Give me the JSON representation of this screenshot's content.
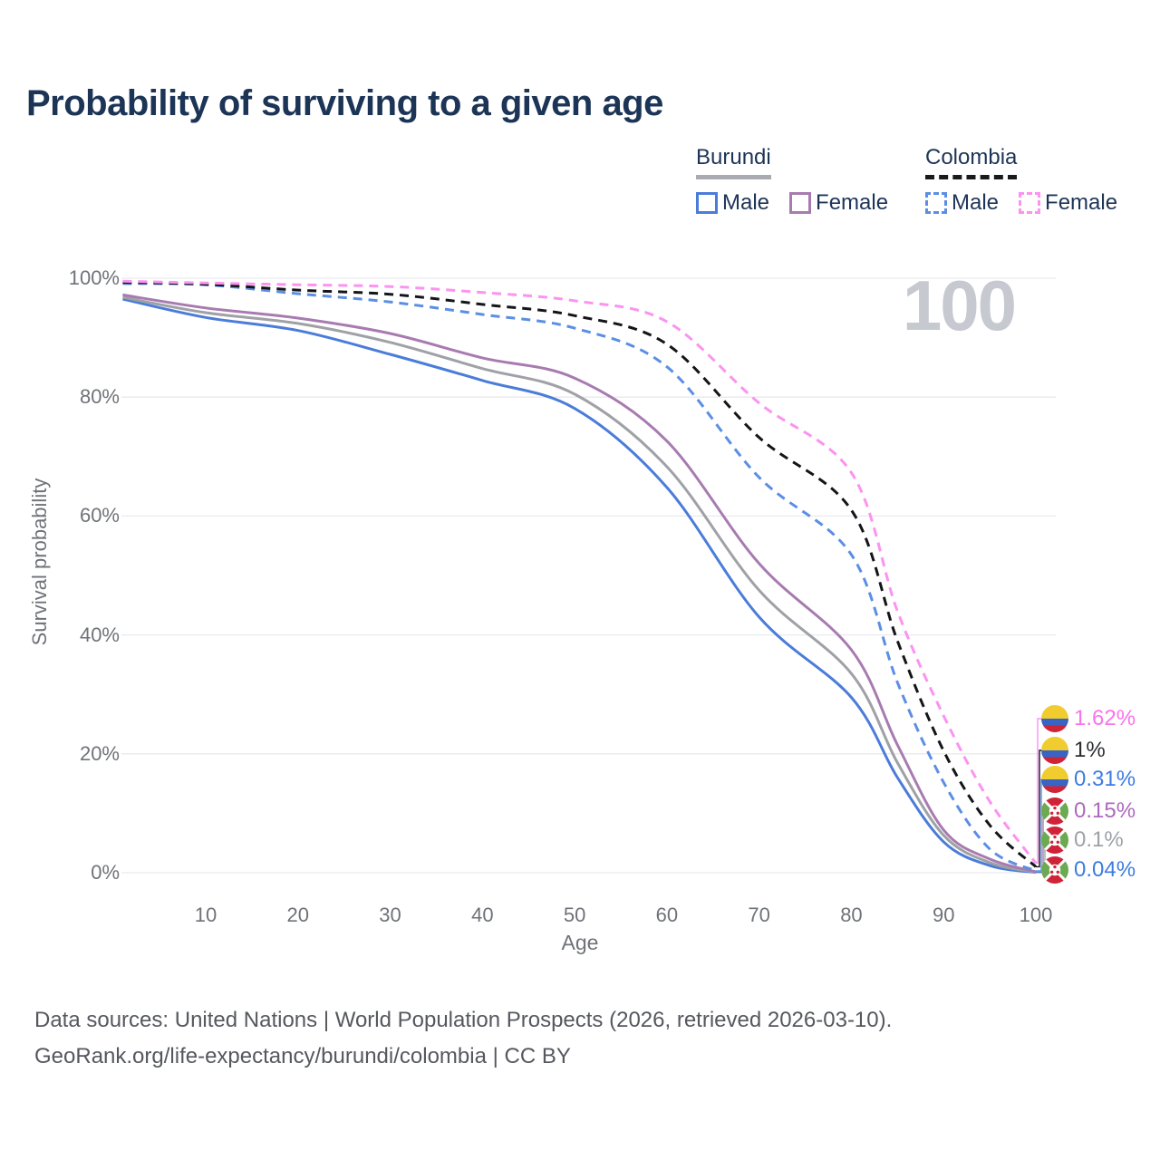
{
  "page": {
    "title": "Probability of surviving to a given age",
    "watermark_age": "100",
    "footer_line1": "Data sources: United Nations | World Population Prospects (2026, retrieved 2026-03-10).",
    "footer_line2": "GeoRank.org/life-expectancy/burundi/colombia | CC BY"
  },
  "legend": {
    "groups": [
      {
        "label": "Burundi",
        "underline_style": "solid",
        "underline_color": "#a9abb0",
        "items": [
          {
            "label": "Male",
            "color": "#4a7cd9",
            "dashed": false
          },
          {
            "label": "Female",
            "color": "#a87bb0",
            "dashed": false
          }
        ]
      },
      {
        "label": "Colombia",
        "underline_style": "dashed",
        "underline_color": "#1a1a1a",
        "items": [
          {
            "label": "Male",
            "color": "#5b8ee4",
            "dashed": true
          },
          {
            "label": "Female",
            "color": "#fb93f0",
            "dashed": true
          }
        ]
      }
    ]
  },
  "chart_data": {
    "type": "line",
    "title": "Probability of surviving to a given age",
    "xlabel": "Age",
    "ylabel": "Survival probability",
    "xlim": [
      1,
      100
    ],
    "ylim": [
      0,
      100
    ],
    "x_ticks": [
      10,
      20,
      30,
      40,
      50,
      60,
      70,
      80,
      90,
      100
    ],
    "y_ticks": [
      0,
      20,
      40,
      60,
      80,
      100
    ],
    "y_tick_suffix": "%",
    "grid": "horizontal",
    "grid_color": "#e9eaee",
    "x": [
      1,
      10,
      20,
      30,
      40,
      50,
      60,
      70,
      80,
      85,
      90,
      95,
      100
    ],
    "series": [
      {
        "name": "Burundi Male",
        "color": "#4a7cd9",
        "dash": false,
        "values": [
          96.5,
          93.4,
          91.2,
          87.2,
          82.8,
          78.1,
          64.8,
          43.0,
          29.5,
          16.0,
          5.2,
          1.2,
          0.04
        ]
      },
      {
        "name": "Burundi Total",
        "color": "#9fa1a6",
        "dash": false,
        "values": [
          96.8,
          94.2,
          92.4,
          89.2,
          84.8,
          80.5,
          68.3,
          47.5,
          33.5,
          18.5,
          6.3,
          1.7,
          0.1
        ]
      },
      {
        "name": "Burundi Female",
        "color": "#a87bb0",
        "dash": false,
        "values": [
          97.2,
          95.0,
          93.3,
          90.7,
          86.6,
          83.2,
          72.6,
          52.0,
          37.5,
          21.5,
          7.2,
          2.3,
          0.15
        ]
      },
      {
        "name": "Colombia Male",
        "color": "#5b8ee4",
        "dash": true,
        "values": [
          99.1,
          98.9,
          97.4,
          96.0,
          93.9,
          91.6,
          85.1,
          66.5,
          53.5,
          32.0,
          15.2,
          4.0,
          0.31
        ]
      },
      {
        "name": "Colombia Total",
        "color": "#141518",
        "dash": true,
        "values": [
          99.3,
          99.0,
          98.0,
          97.3,
          95.6,
          93.7,
          88.9,
          73.2,
          61.0,
          39.0,
          20.5,
          8.0,
          1.0
        ]
      },
      {
        "name": "Colombia Female",
        "color": "#fb93f0",
        "dash": true,
        "values": [
          99.5,
          99.2,
          98.9,
          98.6,
          97.6,
          96.2,
          92.7,
          79.0,
          67.3,
          44.0,
          26.4,
          12.0,
          1.62
        ]
      }
    ],
    "end_labels": [
      {
        "text": "1.62%",
        "color": "#f973ec",
        "flag": "colombia",
        "series": "Colombia Female"
      },
      {
        "text": "1%",
        "color": "#2a2c30",
        "flag": "colombia",
        "series": "Colombia Total"
      },
      {
        "text": "0.31%",
        "color": "#3c7ce0",
        "flag": "colombia",
        "series": "Colombia Male"
      },
      {
        "text": "0.15%",
        "color": "#ae68be",
        "flag": "burundi",
        "series": "Burundi Female"
      },
      {
        "text": "0.1%",
        "color": "#9ea1a7",
        "flag": "burundi",
        "series": "Burundi Total"
      },
      {
        "text": "0.04%",
        "color": "#3c7ce0",
        "flag": "burundi",
        "series": "Burundi Male"
      }
    ]
  }
}
